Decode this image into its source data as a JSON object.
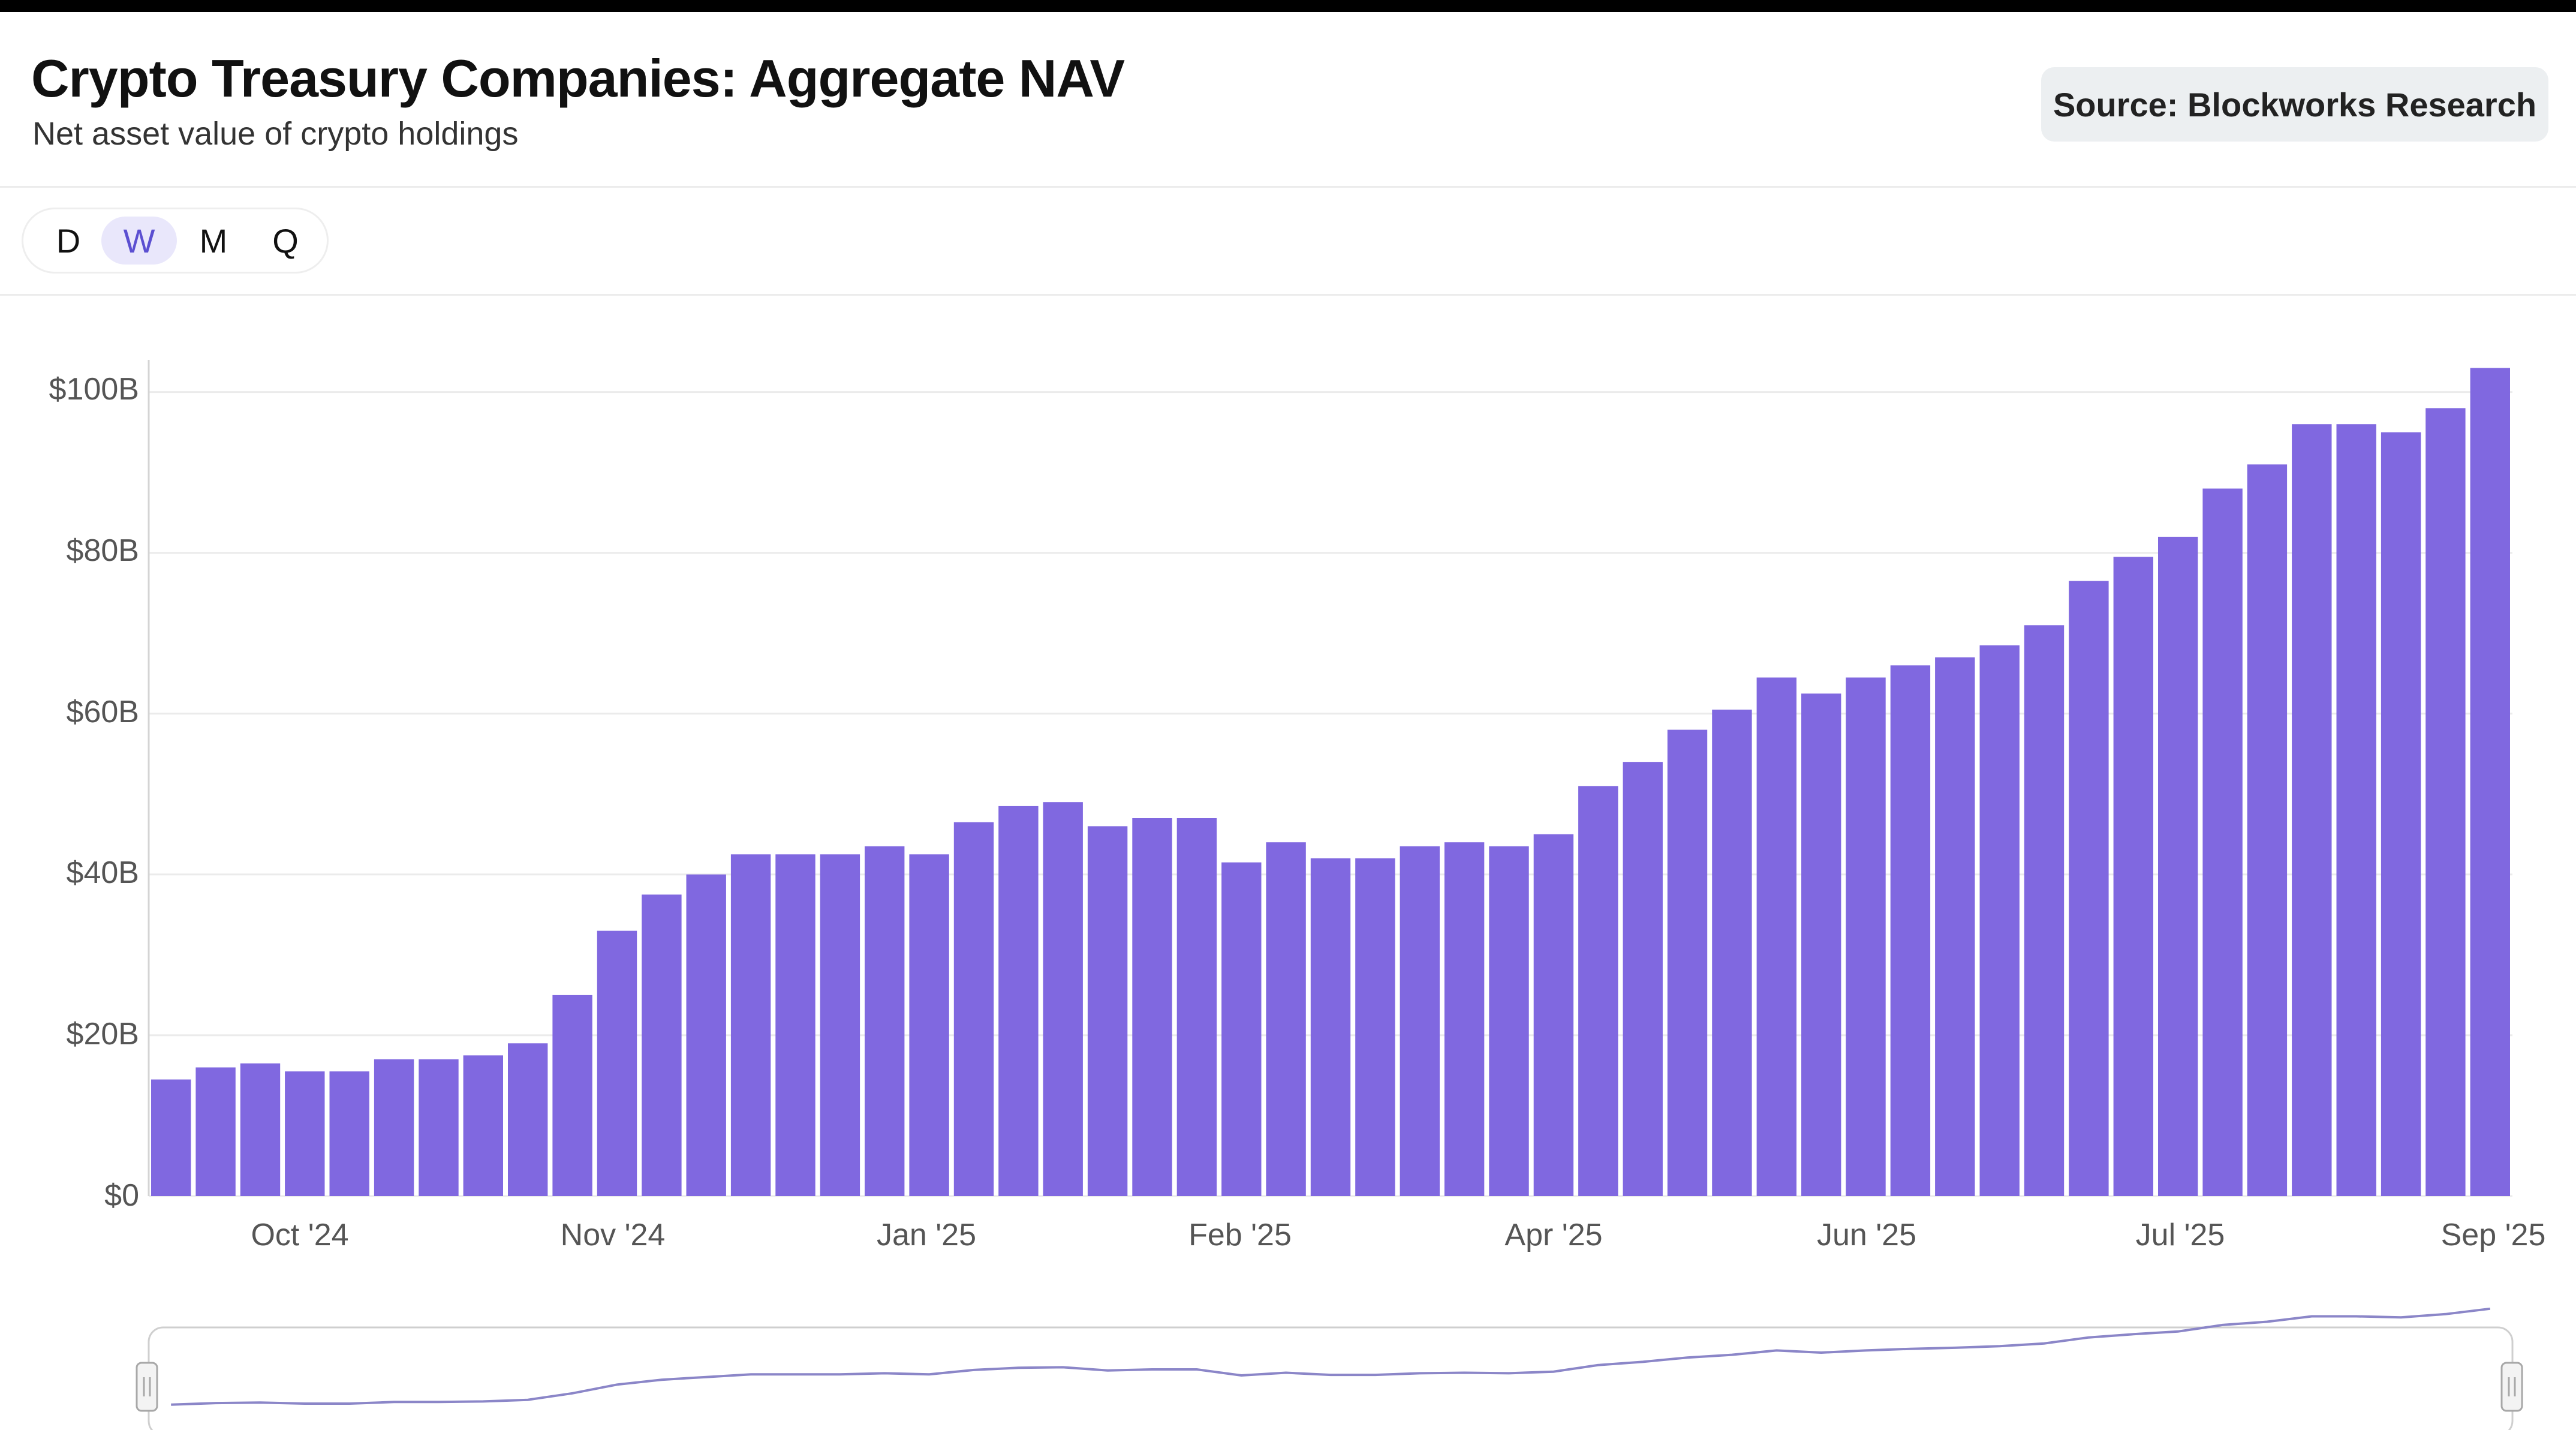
{
  "header": {
    "title": "Crypto Treasury Companies: Aggregate NAV",
    "subtitle": "Net asset value of crypto holdings",
    "source": "Source: Blockworks Research"
  },
  "interval_tabs": [
    {
      "label": "D",
      "active": false
    },
    {
      "label": "W",
      "active": true
    },
    {
      "label": "M",
      "active": false
    },
    {
      "label": "Q",
      "active": false
    }
  ],
  "colors": {
    "bar": "#8068e0",
    "accent": "#5b4fd1",
    "active_tab_bg": "#e9e7fb",
    "navigator_line": "#8b86c8"
  },
  "chart_data": {
    "type": "bar",
    "title": "Crypto Treasury Companies: Aggregate NAV",
    "subtitle": "Net asset value of crypto holdings",
    "unit": "USD billions",
    "ylim": [
      0,
      104
    ],
    "yticks": [
      0,
      20,
      40,
      60,
      80,
      100
    ],
    "ytick_labels": [
      "$0",
      "$20B",
      "$40B",
      "$60B",
      "$80B",
      "$100B"
    ],
    "xtick_labels": [
      "Oct '24",
      "Nov '24",
      "Jan '25",
      "Feb '25",
      "Apr '25",
      "Jun '25",
      "Jul '25",
      "Sep '25"
    ],
    "grid": true,
    "legend": "none",
    "series": [
      {
        "name": "Aggregate NAV",
        "values": [
          14.5,
          16,
          16.5,
          15.5,
          15.5,
          17,
          17,
          17.5,
          19,
          25,
          33,
          37.5,
          40,
          42.5,
          42.5,
          42.5,
          43.5,
          42.5,
          46.5,
          48.5,
          49,
          46,
          47,
          47,
          41.5,
          44,
          42,
          42,
          43.5,
          44,
          43.5,
          45,
          51,
          54,
          58,
          60.5,
          64.5,
          62.5,
          64.5,
          66,
          67,
          68.5,
          71,
          76.5,
          79.5,
          82,
          88,
          91,
          96,
          96,
          95,
          98,
          103
        ]
      }
    ],
    "navigator": {
      "intervals": 53
    }
  }
}
